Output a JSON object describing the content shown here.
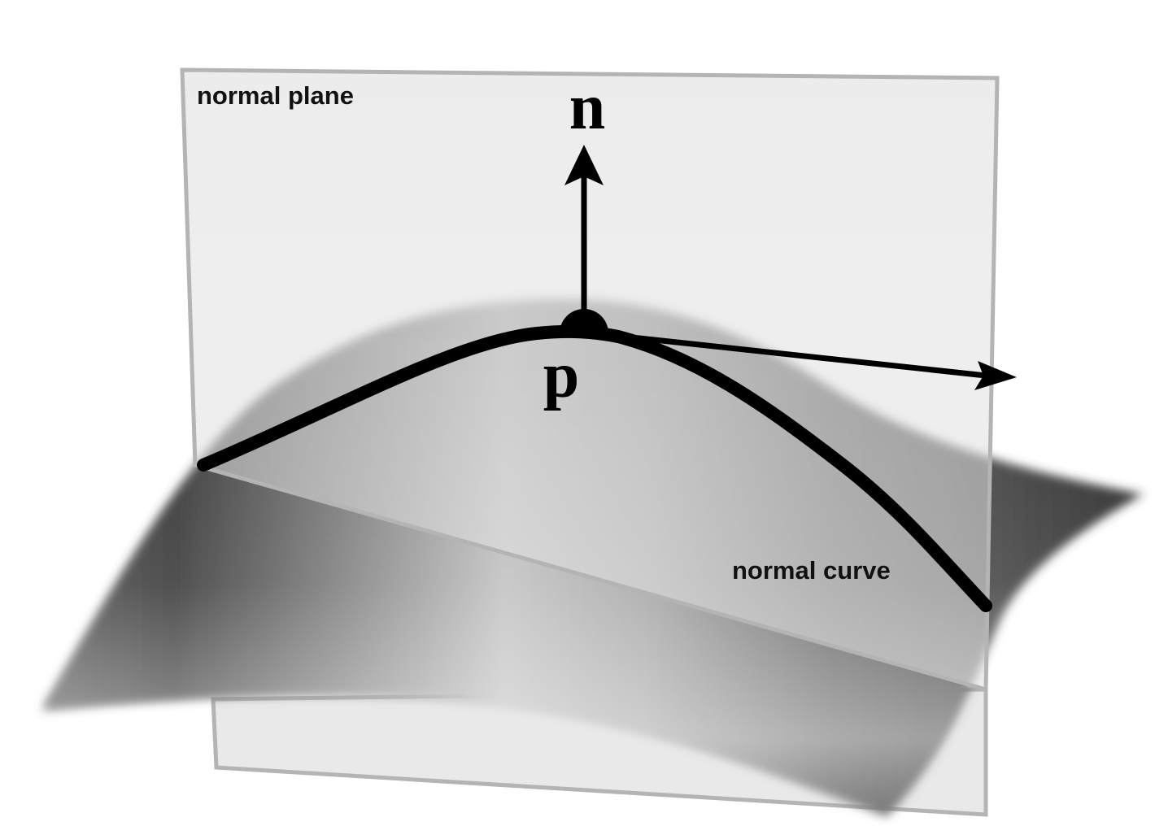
{
  "labels": {
    "normal_plane": "normal plane",
    "normal_vector": "n",
    "point": "p",
    "normal_curve": "normal curve"
  },
  "colors": {
    "background": "#ffffff",
    "plane_fill": "#dcdcdc",
    "plane_edge": "#b4b4b4",
    "surface_dark": "#3c3c3c",
    "surface_light": "#c8c8c8",
    "curve": "#000000"
  },
  "icons": {
    "normal_vector": "up-arrow",
    "tangent_vector": "right-arrow",
    "point_marker": "filled-dot"
  }
}
